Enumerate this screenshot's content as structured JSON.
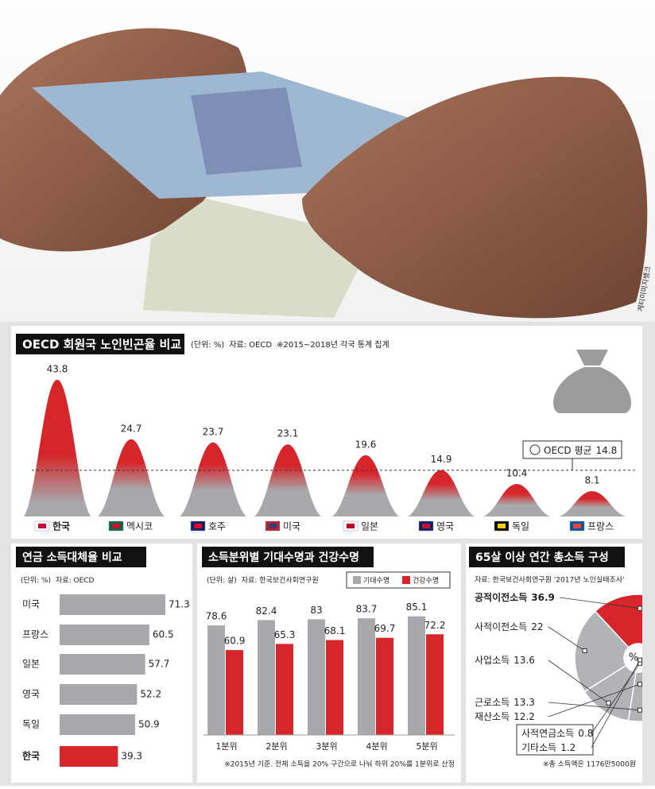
{
  "photo_credit": "게티이미지뱅크",
  "chart_data": [
    {
      "type": "bell",
      "title": "OECD 회원국 노인빈곤율 비교",
      "subtitle": "(단위: %)",
      "source": "자료: OECD",
      "note": "※2015~2018년 각국 통계 집계",
      "categories": [
        "한국",
        "멕시코",
        "호주",
        "미국",
        "일본",
        "영국",
        "독일",
        "프랑스"
      ],
      "values": [
        43.8,
        24.7,
        23.7,
        23.1,
        19.6,
        14.9,
        10.4,
        8.1
      ],
      "color": "#d7262b",
      "reference": {
        "label": "OECD 평균",
        "value": 14.8
      }
    },
    {
      "type": "hbar",
      "title": "연금 소득대체율 비교",
      "subtitle": "(단위: %)",
      "source": "자료: OECD",
      "categories": [
        "미국",
        "프랑스",
        "일본",
        "영국",
        "독일",
        "한국"
      ],
      "values": [
        71.3,
        60.5,
        57.7,
        52.2,
        50.9,
        39.3
      ],
      "colors": [
        "#a7a9ac",
        "#a7a9ac",
        "#a7a9ac",
        "#a7a9ac",
        "#a7a9ac",
        "#d7262b"
      ]
    },
    {
      "type": "grouped-bar",
      "title": "소득분위별 기대수명과 건강수명",
      "subtitle": "(단위: 살)",
      "source": "자료: 한국보건사회연구원",
      "categories": [
        "1분위",
        "2분위",
        "3분위",
        "4분위",
        "5분위"
      ],
      "series": [
        {
          "name": "기대수명",
          "color": "#a7a9ac",
          "values": [
            78.6,
            82.4,
            83,
            83.7,
            85.1
          ]
        },
        {
          "name": "건강수명",
          "color": "#d7262b",
          "values": [
            60.9,
            65.3,
            68.1,
            69.7,
            72.2
          ]
        }
      ],
      "note": "※2015년 기준. 전체 소득을 20% 구간으로 나눠 하위 20%를 1분위로 산정"
    },
    {
      "type": "pie",
      "title": "65살 이상 연간 총소득 구성",
      "source": "자료: 한국보건사회연구원 '2017년 노인실태조사'",
      "categories": [
        "공적이전소득",
        "사적이전소득",
        "사업소득",
        "근로소득",
        "재산소득",
        "사적연금소득",
        "기타소득"
      ],
      "values": [
        36.9,
        22,
        13.6,
        13.3,
        12.2,
        0.8,
        1.2
      ],
      "colors": [
        "#d7262b",
        "#b1b3b6",
        "#b1b3b6",
        "#b1b3b6",
        "#b1b3b6",
        "#b1b3b6",
        "#b1b3b6"
      ],
      "center_label": "%",
      "note": "※총 소득액은 1176만5000원"
    }
  ]
}
